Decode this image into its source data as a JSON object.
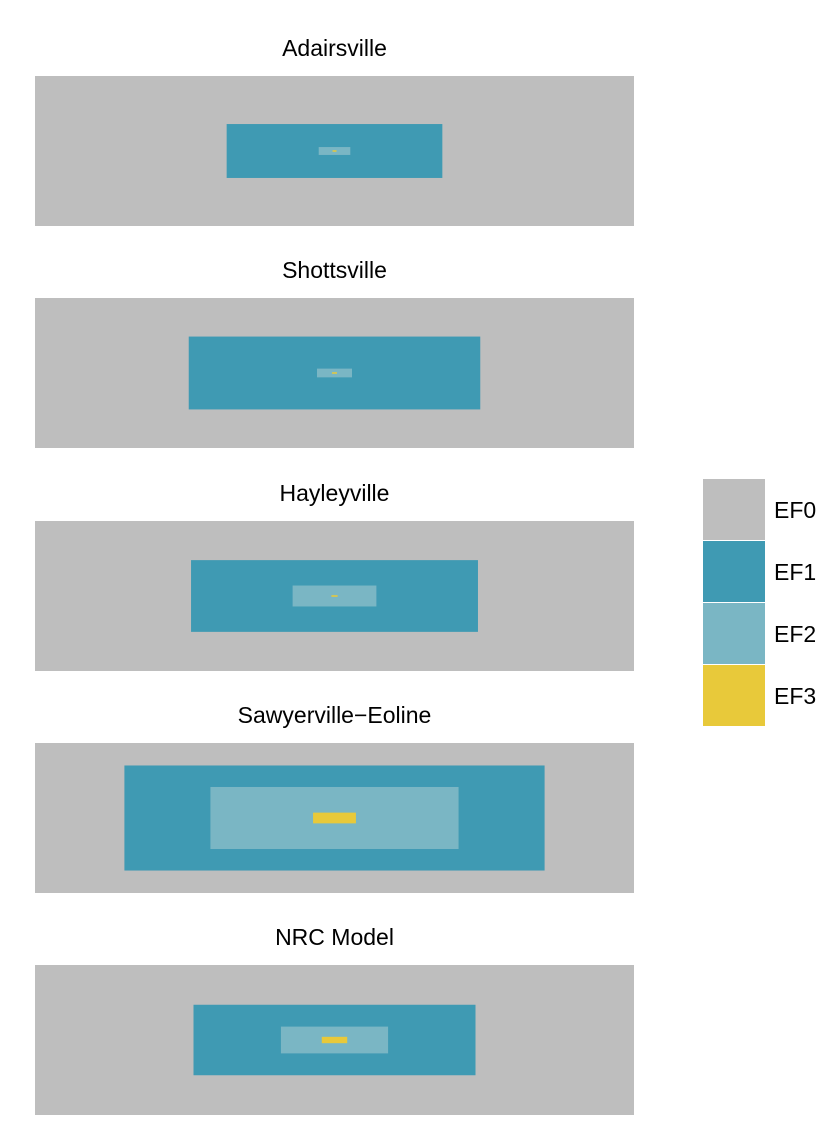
{
  "chart_data": {
    "type": "nested-rectangles",
    "description_note": "",
    "panels": [
      {
        "title": "Adairsville",
        "areas": {
          "EF0": 1.0,
          "EF1": 0.12945,
          "EF2": 0.00278,
          "EF3": 3e-05
        }
      },
      {
        "title": "Shottsville",
        "areas": {
          "EF0": 1.0,
          "EF1": 0.23647,
          "EF2": 0.00341,
          "EF3": 6.7e-05
        }
      },
      {
        "title": "Hayleyville",
        "areas": {
          "EF0": 1.0,
          "EF1": 0.22907,
          "EF2": 0.01953,
          "EF3": 0.000108
        }
      },
      {
        "title": "Sawyerville−Eoline",
        "areas": {
          "EF0": 1.0,
          "EF1": 0.49126,
          "EF2": 0.17134,
          "EF3": 0.005114
        }
      },
      {
        "title": "NRC Model",
        "areas": {
          "EF0": 1.0,
          "EF1": 0.22127,
          "EF2": 0.03196,
          "EF3": 0.001801
        }
      }
    ],
    "legend": {
      "position": "right",
      "entries": [
        {
          "label": "EF0",
          "color": "#bebebe"
        },
        {
          "label": "EF1",
          "color": "#3f9ab3"
        },
        {
          "label": "EF2",
          "color": "#7ab6c4"
        },
        {
          "label": "EF3",
          "color": "#e8c93a"
        }
      ]
    }
  }
}
